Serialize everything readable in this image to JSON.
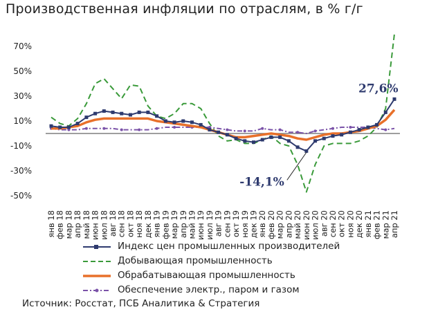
{
  "title": "Производственная инфляции по отраслям, в % г/г",
  "source": "Источник: Росстат, ПСБ Аналитика & Стратегия",
  "colors": {
    "ppi": "#2e3a6e",
    "mining": "#3a9a3a",
    "manuf": "#e8702a",
    "power": "#7a52a8",
    "zero": "#7f7f7f"
  },
  "chart_data": {
    "type": "line",
    "ylim": [
      -55,
      85
    ],
    "yticks": [
      -50,
      -30,
      -10,
      10,
      30,
      50,
      70
    ],
    "ytick_labels": [
      "-50%",
      "-30%",
      "-10%",
      "10%",
      "30%",
      "50%",
      "70%"
    ],
    "categories": [
      "янв 18",
      "фев 18",
      "мар 18",
      "апр 18",
      "май 18",
      "июн 18",
      "июл 18",
      "авг 18",
      "сен 18",
      "окт 18",
      "ноя 18",
      "дек 18",
      "янв 19",
      "фев 19",
      "мар 19",
      "апр 19",
      "май 19",
      "июн 19",
      "июл 19",
      "авг 19",
      "сен 19",
      "окт 19",
      "ноя 19",
      "дек 19",
      "янв 20",
      "фев 20",
      "мар 20",
      "апр 20",
      "май 20",
      "июн 20",
      "июл 20",
      "авг 20",
      "сен 20",
      "окт 20",
      "ноя 20",
      "дек 20",
      "янв 21",
      "фев 21",
      "мар 21",
      "апр 21"
    ],
    "series": [
      {
        "name": "Индекс цен промышленных производителей",
        "key": "ppi",
        "style": "solid-marker",
        "values": [
          6,
          5,
          5,
          8,
          13,
          16,
          18,
          17,
          16,
          15,
          17,
          17,
          14,
          10,
          9,
          10,
          9,
          7,
          3,
          1,
          -1,
          -4,
          -6,
          -7,
          -5,
          -3,
          -3,
          -6,
          -11,
          -14.1,
          -6,
          -4,
          -2,
          -1,
          1,
          3,
          5,
          7,
          17,
          27.6
        ]
      },
      {
        "name": "Добывающая промышленность",
        "key": "mining",
        "style": "dashed",
        "values": [
          13,
          8,
          6,
          12,
          24,
          40,
          44,
          36,
          28,
          39,
          38,
          22,
          14,
          12,
          16,
          24,
          24,
          20,
          8,
          -2,
          -6,
          -5,
          -8,
          -8,
          -5,
          -2,
          -8,
          -10,
          -25,
          -47,
          -25,
          -10,
          -8,
          -8,
          -8,
          -6,
          -2,
          5,
          20,
          80
        ]
      },
      {
        "name": "Обрабатывающая промышленность",
        "key": "manuf",
        "style": "thick",
        "values": [
          4,
          4,
          5,
          6,
          9,
          11,
          12,
          12,
          12,
          12,
          12,
          12,
          10,
          9,
          8,
          7,
          6,
          5,
          3,
          1,
          -1,
          -3,
          -3,
          -2,
          -1,
          0,
          -1,
          -2,
          -4,
          -5,
          -3,
          -1,
          0,
          0,
          1,
          2,
          4,
          6,
          11,
          19
        ]
      },
      {
        "name": "Обеспечение электр., паром и газом",
        "key": "power",
        "style": "dashdot",
        "values": [
          4,
          3,
          3,
          3,
          4,
          4,
          4,
          4,
          3,
          3,
          3,
          3,
          4,
          5,
          5,
          5,
          5,
          5,
          5,
          4,
          3,
          2,
          2,
          2,
          4,
          3,
          3,
          1,
          1,
          0,
          2,
          3,
          4,
          5,
          5,
          5,
          5,
          4,
          3,
          4
        ]
      }
    ],
    "annotations": [
      {
        "text": "27,6%",
        "category": "апр 21",
        "value": 27.6
      },
      {
        "text": "-14,1%",
        "category": "июн 20",
        "value": -14.1
      }
    ]
  }
}
